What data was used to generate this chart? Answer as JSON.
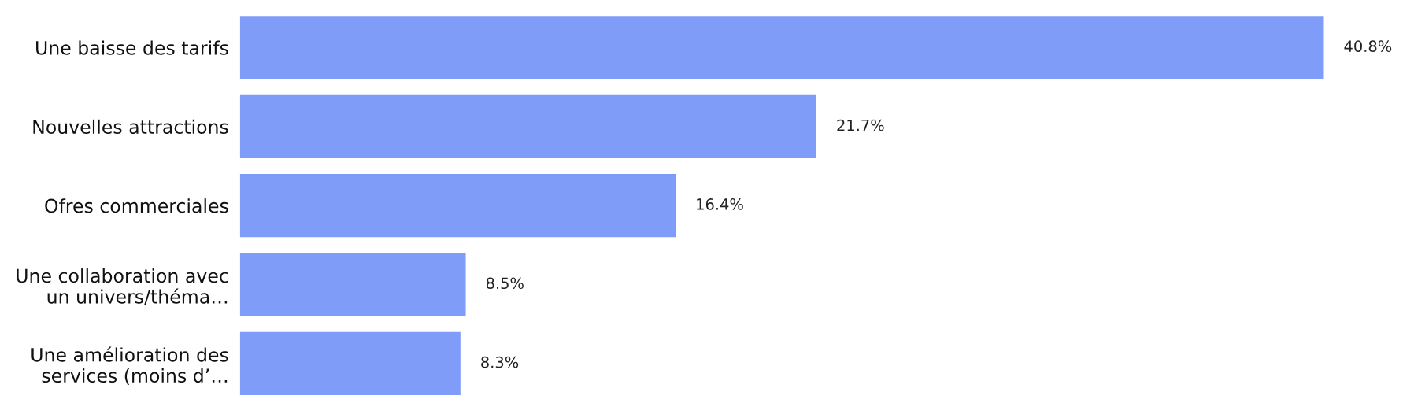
{
  "chart_data": {
    "type": "bar",
    "orientation": "horizontal",
    "categories": [
      "Une baisse des tarifs",
      "Nouvelles attractions",
      "Ofres commerciales",
      "Une collaboration avec\nun univers/théma…",
      "Une amélioration des\nservices (moins d’…"
    ],
    "values": [
      40.8,
      21.7,
      16.4,
      8.5,
      8.3
    ],
    "value_labels": [
      "40.8%",
      "21.7%",
      "16.4%",
      "8.5%",
      "8.3%"
    ],
    "color": "#7f9cf8",
    "grid": false,
    "legend": false
  }
}
